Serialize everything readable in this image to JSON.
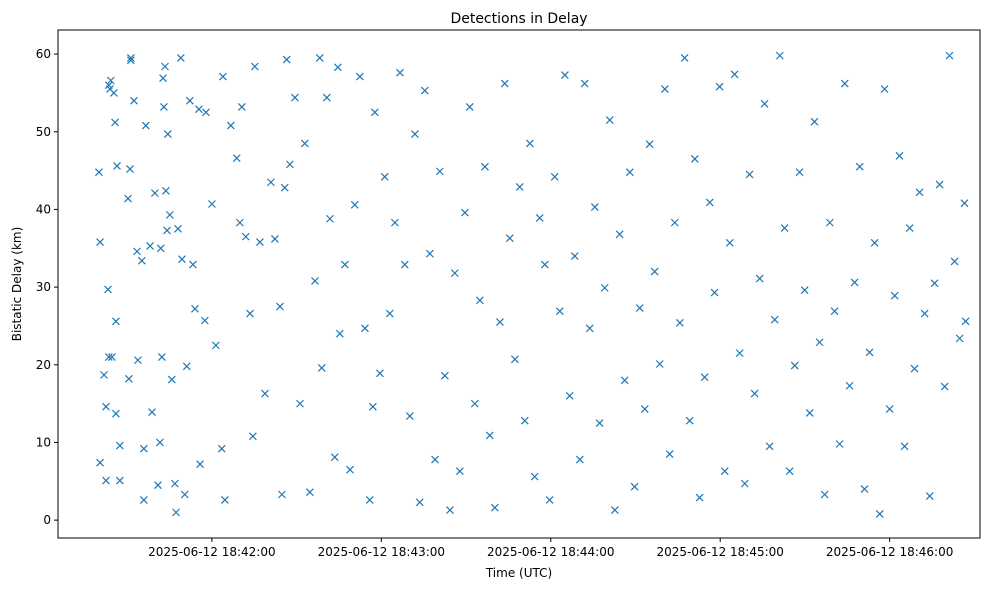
{
  "chart_data": {
    "type": "scatter",
    "title": "Detections in Delay",
    "xlabel": "Time (UTC)",
    "ylabel": "Bistatic Delay (km)",
    "x_unit": "seconds after 2025-06-12 18:41:00 UTC",
    "xlim": [
      5.5,
      332
    ],
    "ylim": [
      -2.3,
      63.1
    ],
    "grid": false,
    "marker": "x",
    "color": "#1f77b4",
    "xticks": [
      {
        "value": 60,
        "label": "2025-06-12 18:42:00"
      },
      {
        "value": 120,
        "label": "2025-06-12 18:43:00"
      },
      {
        "value": 180,
        "label": "2025-06-12 18:44:00"
      },
      {
        "value": 240,
        "label": "2025-06-12 18:45:00"
      },
      {
        "value": 300,
        "label": "2025-06-12 18:46:00"
      }
    ],
    "yticks": [
      {
        "value": 0,
        "label": "0"
      },
      {
        "value": 10,
        "label": "10"
      },
      {
        "value": 20,
        "label": "20"
      },
      {
        "value": 30,
        "label": "30"
      },
      {
        "value": 40,
        "label": "40"
      },
      {
        "value": 50,
        "label": "50"
      },
      {
        "value": 60,
        "label": "60"
      }
    ],
    "points": [
      [
        20.0,
        44.8
      ],
      [
        20.4,
        35.8
      ],
      [
        20.4,
        7.4
      ],
      [
        21.8,
        18.7
      ],
      [
        22.5,
        14.6
      ],
      [
        22.5,
        5.1
      ],
      [
        23.2,
        29.7
      ],
      [
        23.5,
        56
      ],
      [
        23.9,
        55.5
      ],
      [
        24.2,
        56.6
      ],
      [
        23.5,
        21
      ],
      [
        24.6,
        21
      ],
      [
        25.3,
        55
      ],
      [
        25.7,
        51.2
      ],
      [
        26.0,
        25.6
      ],
      [
        26.0,
        13.7
      ],
      [
        26.4,
        45.6
      ],
      [
        27.4,
        9.6
      ],
      [
        27.4,
        5.1
      ],
      [
        30.3,
        41.4
      ],
      [
        30.6,
        18.2
      ],
      [
        31.0,
        45.2
      ],
      [
        31.3,
        59.5
      ],
      [
        31.3,
        59.2
      ],
      [
        32.4,
        54
      ],
      [
        33.5,
        34.6
      ],
      [
        33.8,
        20.6
      ],
      [
        35.2,
        33.4
      ],
      [
        35.9,
        9.2
      ],
      [
        35.9,
        2.6
      ],
      [
        36.6,
        50.8
      ],
      [
        38.1,
        35.3
      ],
      [
        38.8,
        13.9
      ],
      [
        39.8,
        42.1
      ],
      [
        40.9,
        4.5
      ],
      [
        41.6,
        10
      ],
      [
        41.9,
        35
      ],
      [
        42.3,
        21
      ],
      [
        42.7,
        56.9
      ],
      [
        43.0,
        53.2
      ],
      [
        43.4,
        58.4
      ],
      [
        43.7,
        42.4
      ],
      [
        44.1,
        37.3
      ],
      [
        44.4,
        49.7
      ],
      [
        45.1,
        39.3
      ],
      [
        45.8,
        18.1
      ],
      [
        46.9,
        4.7
      ],
      [
        47.3,
        1.0
      ],
      [
        48.0,
        37.5
      ],
      [
        49.0,
        59.5
      ],
      [
        49.4,
        33.6
      ],
      [
        50.4,
        3.3
      ],
      [
        51.1,
        19.8
      ],
      [
        52.2,
        54
      ],
      [
        53.3,
        32.9
      ],
      [
        54.0,
        27.2
      ],
      [
        55.4,
        52.9
      ],
      [
        55.8,
        7.2
      ],
      [
        57.5,
        25.7
      ],
      [
        57.9,
        52.5
      ],
      [
        60.0,
        40.7
      ],
      [
        61.4,
        22.5
      ],
      [
        63.5,
        9.2
      ],
      [
        63.9,
        57.1
      ],
      [
        64.6,
        2.6
      ],
      [
        66.7,
        50.8
      ],
      [
        68.8,
        46.6
      ],
      [
        69.9,
        38.3
      ],
      [
        70.6,
        53.2
      ],
      [
        72.0,
        36.5
      ],
      [
        73.5,
        26.6
      ],
      [
        74.5,
        10.8
      ],
      [
        75.2,
        58.4
      ],
      [
        77.0,
        35.8
      ],
      [
        78.8,
        16.3
      ],
      [
        80.9,
        43.5
      ],
      [
        82.3,
        36.2
      ],
      [
        84.1,
        27.5
      ],
      [
        84.8,
        3.3
      ],
      [
        85.8,
        42.8
      ],
      [
        86.5,
        59.3
      ],
      [
        87.6,
        45.8
      ],
      [
        89.4,
        54.4
      ],
      [
        91.2,
        15
      ],
      [
        92.9,
        48.5
      ],
      [
        94.7,
        3.6
      ],
      [
        96.5,
        30.8
      ],
      [
        98.2,
        59.5
      ],
      [
        98.9,
        19.6
      ],
      [
        100.7,
        54.4
      ],
      [
        101.8,
        38.8
      ],
      [
        103.5,
        8.1
      ],
      [
        104.6,
        58.3
      ],
      [
        105.3,
        24
      ],
      [
        107.1,
        32.9
      ],
      [
        108.9,
        6.5
      ],
      [
        110.6,
        40.6
      ],
      [
        112.4,
        57.1
      ],
      [
        114.2,
        24.7
      ],
      [
        115.9,
        2.6
      ],
      [
        117.0,
        14.6
      ],
      [
        117.7,
        52.5
      ],
      [
        119.5,
        18.9
      ],
      [
        121.2,
        44.2
      ],
      [
        123.0,
        26.6
      ],
      [
        124.8,
        38.3
      ],
      [
        126.6,
        57.6
      ],
      [
        128.3,
        32.9
      ],
      [
        130.1,
        13.4
      ],
      [
        131.9,
        49.7
      ],
      [
        133.6,
        2.3
      ],
      [
        135.4,
        55.3
      ],
      [
        137.2,
        34.3
      ],
      [
        139.0,
        7.8
      ],
      [
        140.7,
        44.9
      ],
      [
        142.5,
        18.6
      ],
      [
        144.3,
        1.3
      ],
      [
        146.0,
        31.8
      ],
      [
        147.8,
        6.3
      ],
      [
        149.6,
        39.6
      ],
      [
        151.3,
        53.2
      ],
      [
        153.1,
        15
      ],
      [
        154.9,
        28.3
      ],
      [
        156.7,
        45.5
      ],
      [
        158.4,
        10.9
      ],
      [
        160.2,
        1.6
      ],
      [
        162.0,
        25.5
      ],
      [
        163.7,
        56.2
      ],
      [
        165.5,
        36.3
      ],
      [
        167.3,
        20.7
      ],
      [
        169.0,
        42.9
      ],
      [
        170.8,
        12.8
      ],
      [
        172.6,
        48.5
      ],
      [
        174.3,
        5.6
      ],
      [
        176.1,
        38.9
      ],
      [
        177.9,
        32.9
      ],
      [
        179.6,
        2.6
      ],
      [
        181.4,
        44.2
      ],
      [
        183.2,
        26.9
      ],
      [
        185.0,
        57.3
      ],
      [
        186.7,
        16
      ],
      [
        188.5,
        34
      ],
      [
        190.3,
        7.8
      ],
      [
        192.0,
        56.2
      ],
      [
        193.8,
        24.7
      ],
      [
        195.6,
        40.3
      ],
      [
        197.3,
        12.5
      ],
      [
        199.1,
        29.9
      ],
      [
        200.9,
        51.5
      ],
      [
        202.7,
        1.3
      ],
      [
        204.4,
        36.8
      ],
      [
        206.2,
        18
      ],
      [
        208.0,
        44.8
      ],
      [
        209.7,
        4.3
      ],
      [
        211.5,
        27.3
      ],
      [
        213.3,
        14.3
      ],
      [
        215.0,
        48.4
      ],
      [
        216.8,
        32
      ],
      [
        218.6,
        20.1
      ],
      [
        220.4,
        55.5
      ],
      [
        222.1,
        8.5
      ],
      [
        223.9,
        38.3
      ],
      [
        225.7,
        25.4
      ],
      [
        227.4,
        59.5
      ],
      [
        229.2,
        12.8
      ],
      [
        231.0,
        46.5
      ],
      [
        232.7,
        2.9
      ],
      [
        234.5,
        18.4
      ],
      [
        236.3,
        40.9
      ],
      [
        238.0,
        29.3
      ],
      [
        239.8,
        55.8
      ],
      [
        241.6,
        6.3
      ],
      [
        243.4,
        35.7
      ],
      [
        245.1,
        57.4
      ],
      [
        246.9,
        21.5
      ],
      [
        248.7,
        4.7
      ],
      [
        250.4,
        44.5
      ],
      [
        252.2,
        16.3
      ],
      [
        254.0,
        31.1
      ],
      [
        255.7,
        53.6
      ],
      [
        257.5,
        9.5
      ],
      [
        259.3,
        25.8
      ],
      [
        261.1,
        59.8
      ],
      [
        262.8,
        37.6
      ],
      [
        264.6,
        6.3
      ],
      [
        266.4,
        19.9
      ],
      [
        268.1,
        44.8
      ],
      [
        269.9,
        29.6
      ],
      [
        271.7,
        13.8
      ],
      [
        273.4,
        51.3
      ],
      [
        275.2,
        22.9
      ],
      [
        277.0,
        3.3
      ],
      [
        278.8,
        38.3
      ],
      [
        280.5,
        26.9
      ],
      [
        282.3,
        9.8
      ],
      [
        284.1,
        56.2
      ],
      [
        285.8,
        17.3
      ],
      [
        287.6,
        30.6
      ],
      [
        289.4,
        45.5
      ],
      [
        291.1,
        4.0
      ],
      [
        292.9,
        21.6
      ],
      [
        294.7,
        35.7
      ],
      [
        296.5,
        0.8
      ],
      [
        298.2,
        55.5
      ],
      [
        300.0,
        14.3
      ],
      [
        301.8,
        28.9
      ],
      [
        303.5,
        46.9
      ],
      [
        305.3,
        9.5
      ],
      [
        307.1,
        37.6
      ],
      [
        308.8,
        19.5
      ],
      [
        310.6,
        42.2
      ],
      [
        312.4,
        26.6
      ],
      [
        314.2,
        3.1
      ],
      [
        315.9,
        30.5
      ],
      [
        317.7,
        43.2
      ],
      [
        319.5,
        17.2
      ],
      [
        321.2,
        59.8
      ],
      [
        323.0,
        33.3
      ],
      [
        324.8,
        23.4
      ],
      [
        326.5,
        40.8
      ],
      [
        326.9,
        25.6
      ]
    ]
  }
}
